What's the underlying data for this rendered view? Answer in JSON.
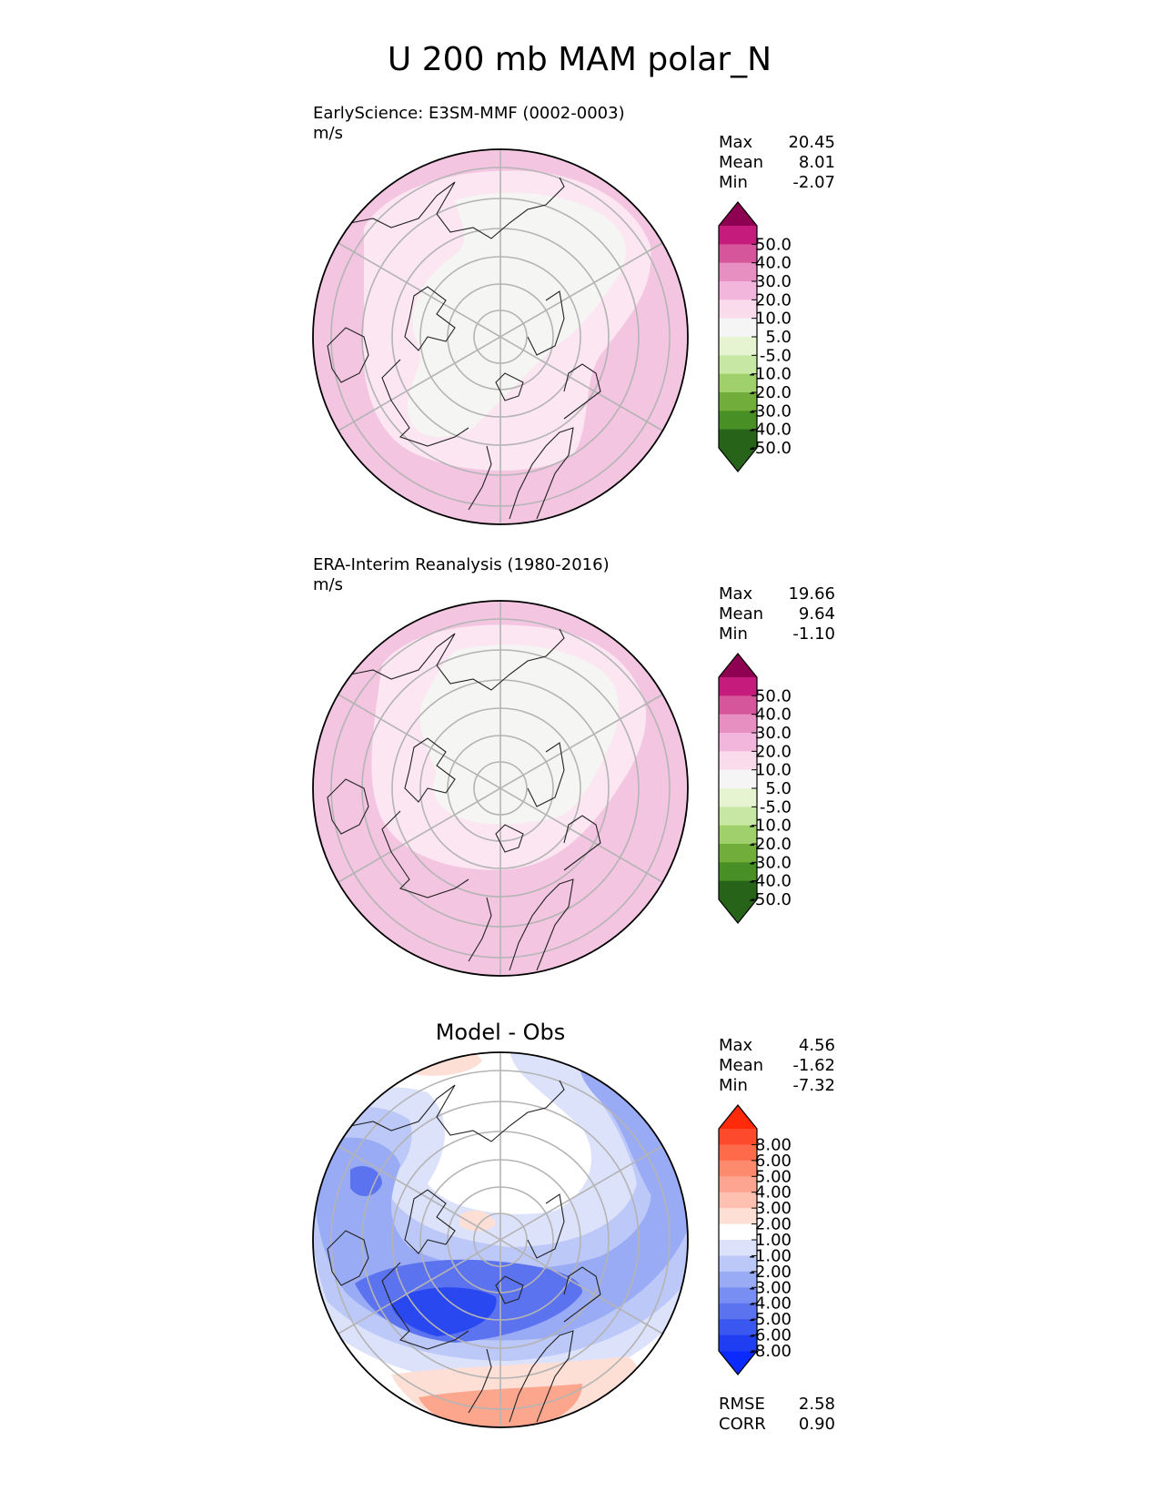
{
  "title": "U 200 mb MAM polar_N",
  "colors": {
    "coast": "#222222",
    "grid": "#b4b4b4"
  },
  "icons": [
    "polar-stereographic-map",
    "colorbar-triangle-extensions"
  ],
  "chart_data": [
    {
      "type": "heatmap",
      "projection": "polar_N",
      "name": "model",
      "title": "EarlyScience: E3SM-MMF (0002-0003)",
      "units": "m/s",
      "stats": [
        {
          "label": "Max",
          "value": "20.45"
        },
        {
          "label": "Mean",
          "value": "8.01"
        },
        {
          "label": "Min",
          "value": "-2.07"
        }
      ],
      "colorbar": {
        "ticks": [
          "50.0",
          "40.0",
          "30.0",
          "20.0",
          "10.0",
          "5.0",
          "-5.0",
          "-10.0",
          "-20.0",
          "-30.0",
          "-40.0",
          "-50.0"
        ],
        "colors": [
          "#c51b7d",
          "#d5569a",
          "#e68fc0",
          "#f2b6dc",
          "#fadbeb",
          "#f5f5f5",
          "#e6f4d2",
          "#c7e8a4",
          "#9fd06b",
          "#70ad3a",
          "#488f26",
          "#276419"
        ],
        "top_extend": "#8e0152",
        "bottom_extend": "#276419"
      },
      "bands": [
        {
          "value": "15",
          "color": "#f3c5e1"
        },
        {
          "value": "7.5",
          "color": "#fbe6f1"
        },
        {
          "value": "0",
          "color": "#f5f5f3"
        }
      ]
    },
    {
      "type": "heatmap",
      "projection": "polar_N",
      "name": "obs",
      "title": "ERA-Interim Reanalysis (1980-2016)",
      "units": "m/s",
      "stats": [
        {
          "label": "Max",
          "value": "19.66"
        },
        {
          "label": "Mean",
          "value": "9.64"
        },
        {
          "label": "Min",
          "value": "-1.10"
        }
      ],
      "colorbar": {
        "ticks": [
          "50.0",
          "40.0",
          "30.0",
          "20.0",
          "10.0",
          "5.0",
          "-5.0",
          "-10.0",
          "-20.0",
          "-30.0",
          "-40.0",
          "-50.0"
        ],
        "colors": [
          "#c51b7d",
          "#d5569a",
          "#e68fc0",
          "#f2b6dc",
          "#fadbeb",
          "#f5f5f5",
          "#e6f4d2",
          "#c7e8a4",
          "#9fd06b",
          "#70ad3a",
          "#488f26",
          "#276419"
        ],
        "top_extend": "#8e0152",
        "bottom_extend": "#276419"
      },
      "bands": [
        {
          "value": "15",
          "color": "#f3c5e1"
        },
        {
          "value": "7.5",
          "color": "#fbe6f1"
        },
        {
          "value": "0",
          "color": "#f5f5f3"
        }
      ]
    },
    {
      "type": "heatmap",
      "projection": "polar_N",
      "name": "diff",
      "title": "Model - Obs",
      "units": "",
      "stats": [
        {
          "label": "Max",
          "value": "4.56"
        },
        {
          "label": "Mean",
          "value": "-1.62"
        },
        {
          "label": "Min",
          "value": "-7.32"
        }
      ],
      "extra_stats": [
        {
          "label": "RMSE",
          "value": "2.58"
        },
        {
          "label": "CORR",
          "value": "0.90"
        }
      ],
      "colorbar": {
        "ticks": [
          "8.00",
          "6.00",
          "5.00",
          "4.00",
          "3.00",
          "2.00",
          "1.00",
          "-1.00",
          "-2.00",
          "-3.00",
          "-4.00",
          "-5.00",
          "-6.00",
          "-8.00"
        ],
        "colors": [
          "#fe4a2c",
          "#fe6a4a",
          "#fe8a6e",
          "#fea591",
          "#fec0b0",
          "#fedfd6",
          "#ffffff",
          "#dde2fb",
          "#bcc8f8",
          "#9aabf5",
          "#788ef2",
          "#5c73f0",
          "#3a58f0",
          "#1f3ef2"
        ],
        "top_extend": "#fe2a0a",
        "bottom_extend": "#0a2afe"
      },
      "bands": [
        {
          "value": "-1.5",
          "color": "#dde2fb"
        },
        {
          "value": "-2.5",
          "color": "#bcc8f8"
        },
        {
          "value": "-3.5",
          "color": "#9aabf5"
        },
        {
          "value": "-5.5",
          "color": "#5c73f0"
        },
        {
          "value": "-7",
          "color": "#2a48f0"
        },
        {
          "value": "1.5",
          "color": "#fedfd6"
        },
        {
          "value": "3",
          "color": "#fca68e"
        }
      ]
    }
  ]
}
